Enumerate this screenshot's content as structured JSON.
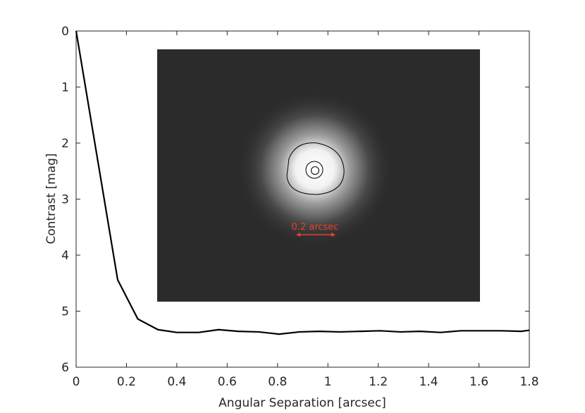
{
  "chart_data": {
    "type": "line",
    "xlabel": "Angular Separation [arcsec]",
    "ylabel": "Contrast [mag]",
    "annotation": "0.2 arcsec",
    "x": [
      0,
      0.165,
      0.245,
      0.325,
      0.4,
      0.487,
      0.566,
      0.644,
      0.725,
      0.806,
      0.887,
      0.966,
      1.047,
      1.128,
      1.207,
      1.288,
      1.366,
      1.447,
      1.528,
      1.607,
      1.688,
      1.768,
      1.8
    ],
    "series": [
      {
        "color": "#000000",
        "values": [
          0,
          4.44,
          5.14,
          5.33,
          5.38,
          5.38,
          5.33,
          5.36,
          5.37,
          5.41,
          5.37,
          5.36,
          5.37,
          5.36,
          5.35,
          5.37,
          5.36,
          5.38,
          5.35,
          5.35,
          5.35,
          5.36,
          5.34
        ]
      }
    ],
    "xlim": [
      0,
      1.8
    ],
    "xticks": [
      0,
      0.2,
      0.4,
      0.6,
      0.8,
      1,
      1.2,
      1.4,
      1.6,
      1.8
    ],
    "ylim": [
      0,
      6
    ],
    "yticks": [
      0,
      1,
      2,
      3,
      4,
      5,
      6
    ],
    "y_inverted": true
  }
}
